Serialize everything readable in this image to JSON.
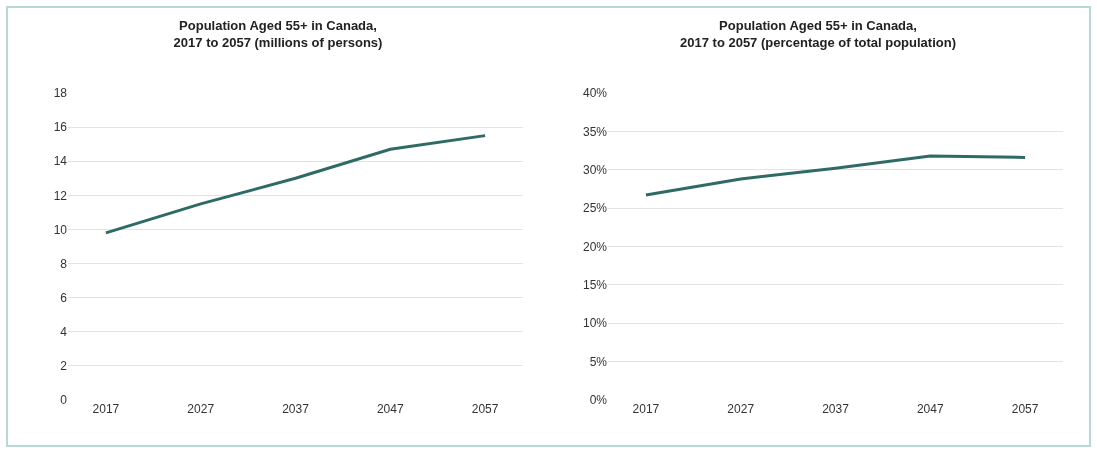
{
  "chart_data": [
    {
      "type": "line",
      "title": "Population Aged 55+ in Canada,\n2017 to 2057 (millions of persons)",
      "categories": [
        "2017",
        "2027",
        "2037",
        "2047",
        "2057"
      ],
      "series": [
        {
          "color": "#2e6b64",
          "values": [
            9.8,
            11.5,
            13.0,
            14.7,
            15.5
          ]
        }
      ],
      "ylim": [
        0,
        18
      ],
      "yticks": [
        0,
        2,
        4,
        6,
        8,
        10,
        12,
        14,
        16,
        18
      ],
      "grid": "y"
    },
    {
      "type": "line",
      "title": "Population Aged 55+ in Canada,\n2017 to 2057 (percentage of total population)",
      "categories": [
        "2017",
        "2027",
        "2037",
        "2047",
        "2057"
      ],
      "series": [
        {
          "color": "#2e6b64",
          "values": [
            26.7,
            28.8,
            30.2,
            31.8,
            31.6
          ]
        }
      ],
      "ylim": [
        0,
        40
      ],
      "yticks": [
        {
          "value": 0,
          "label": "0%"
        },
        {
          "value": 5,
          "label": "5%"
        },
        {
          "value": 10,
          "label": "10%"
        },
        {
          "value": 15,
          "label": "15%"
        },
        {
          "value": 20,
          "label": "20%"
        },
        {
          "value": 25,
          "label": "25%"
        },
        {
          "value": 30,
          "label": "30%"
        },
        {
          "value": 35,
          "label": "35%"
        },
        {
          "value": 40,
          "label": "40%"
        }
      ],
      "grid": "y"
    }
  ]
}
